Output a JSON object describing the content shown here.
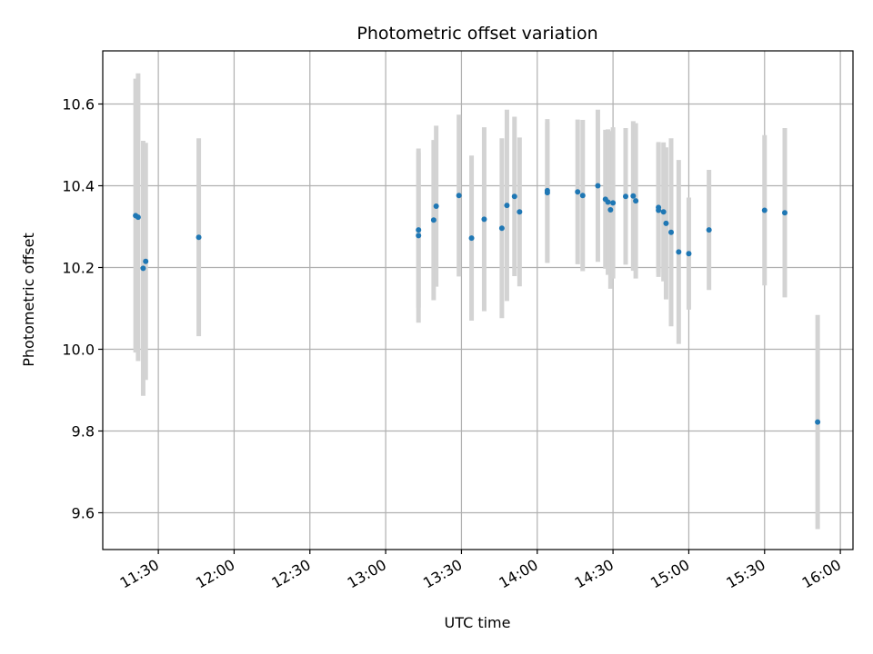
{
  "chart_data": {
    "type": "scatter",
    "title": "Photometric offset variation",
    "xlabel": "UTC time",
    "ylabel": "Photometric offset",
    "x_format": "HH:MM",
    "xlim": [
      "11:08",
      "16:05"
    ],
    "ylim": [
      9.51,
      10.73
    ],
    "xticks": [
      "11:30",
      "12:00",
      "12:30",
      "13:00",
      "13:30",
      "14:00",
      "14:30",
      "15:00",
      "15:30",
      "16:00"
    ],
    "yticks": [
      9.6,
      9.8,
      10.0,
      10.2,
      10.4,
      10.6
    ],
    "ytick_labels": [
      "9.6",
      "9.8",
      "10.0",
      "10.2",
      "10.4",
      "10.6"
    ],
    "grid": true,
    "marker_color": "#1f77b4",
    "errorbar_color": "#d3d3d3",
    "points": [
      {
        "x": "11:21",
        "y": 10.327,
        "err": 0.335
      },
      {
        "x": "11:22",
        "y": 10.323,
        "err": 0.352
      },
      {
        "x": "11:24",
        "y": 10.198,
        "err": 0.312
      },
      {
        "x": "11:25",
        "y": 10.215,
        "err": 0.29
      },
      {
        "x": "11:46",
        "y": 10.274,
        "err": 0.242
      },
      {
        "x": "13:13",
        "y": 10.278,
        "err": 0.213
      },
      {
        "x": "13:13",
        "y": 10.292,
        "err": 0.19
      },
      {
        "x": "13:19",
        "y": 10.316,
        "err": 0.196
      },
      {
        "x": "13:20",
        "y": 10.35,
        "err": 0.197
      },
      {
        "x": "13:29",
        "y": 10.376,
        "err": 0.198
      },
      {
        "x": "13:34",
        "y": 10.272,
        "err": 0.202
      },
      {
        "x": "13:39",
        "y": 10.318,
        "err": 0.225
      },
      {
        "x": "13:46",
        "y": 10.296,
        "err": 0.22
      },
      {
        "x": "13:48",
        "y": 10.352,
        "err": 0.234
      },
      {
        "x": "13:51",
        "y": 10.374,
        "err": 0.195
      },
      {
        "x": "13:53",
        "y": 10.336,
        "err": 0.182
      },
      {
        "x": "14:04",
        "y": 10.383,
        "err": 0.172
      },
      {
        "x": "14:04",
        "y": 10.388,
        "err": 0.175
      },
      {
        "x": "14:16",
        "y": 10.385,
        "err": 0.177
      },
      {
        "x": "14:18",
        "y": 10.376,
        "err": 0.185
      },
      {
        "x": "14:24",
        "y": 10.4,
        "err": 0.186
      },
      {
        "x": "14:27",
        "y": 10.367,
        "err": 0.17
      },
      {
        "x": "14:28",
        "y": 10.36,
        "err": 0.178
      },
      {
        "x": "14:29",
        "y": 10.341,
        "err": 0.193
      },
      {
        "x": "14:30",
        "y": 10.358,
        "err": 0.185
      },
      {
        "x": "14:35",
        "y": 10.374,
        "err": 0.167
      },
      {
        "x": "14:38",
        "y": 10.375,
        "err": 0.183
      },
      {
        "x": "14:39",
        "y": 10.363,
        "err": 0.19
      },
      {
        "x": "14:48",
        "y": 10.34,
        "err": 0.163
      },
      {
        "x": "14:48",
        "y": 10.347,
        "err": 0.16
      },
      {
        "x": "14:50",
        "y": 10.336,
        "err": 0.17
      },
      {
        "x": "14:51",
        "y": 10.308,
        "err": 0.186
      },
      {
        "x": "14:53",
        "y": 10.286,
        "err": 0.23
      },
      {
        "x": "14:56",
        "y": 10.238,
        "err": 0.225
      },
      {
        "x": "15:00",
        "y": 10.234,
        "err": 0.137
      },
      {
        "x": "15:08",
        "y": 10.292,
        "err": 0.147
      },
      {
        "x": "15:30",
        "y": 10.34,
        "err": 0.184
      },
      {
        "x": "15:38",
        "y": 10.334,
        "err": 0.207
      },
      {
        "x": "15:51",
        "y": 9.822,
        "err": 0.262
      }
    ]
  }
}
